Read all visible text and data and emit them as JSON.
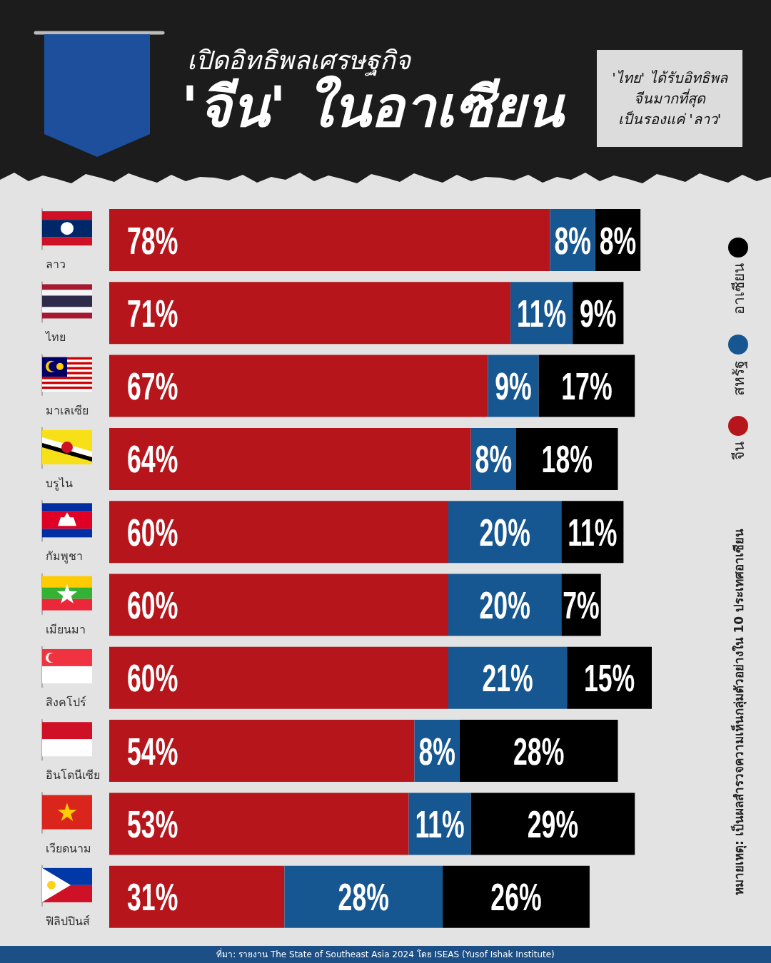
{
  "chart_data": {
    "type": "bar",
    "orientation": "horizontal",
    "stacked": true,
    "subtitle": "เปิดอิทธิพลเศรษฐกิจ",
    "title": "'จีน' ในอาเซียน",
    "categories": [
      "ลาว",
      "ไทย",
      "มาเลเซีย",
      "บรูไน",
      "กัมพูชา",
      "เมียนมา",
      "สิงคโปร์",
      "อินโดนีเซีย",
      "เวียดนาม",
      "ฟิลิปปินส์"
    ],
    "series": [
      {
        "name": "จีน",
        "color": "#b5151b",
        "values": [
          78,
          71,
          67,
          64,
          60,
          60,
          60,
          54,
          53,
          31
        ],
        "value_labels": [
          "78%",
          "71%",
          "67%",
          "64%",
          "60%",
          "60%",
          "60%",
          "54%",
          "53%",
          "31%"
        ]
      },
      {
        "name": "สหรัฐ",
        "color": "#175791",
        "values": [
          8,
          11,
          9,
          8,
          20,
          20,
          21,
          8,
          11,
          28
        ],
        "value_labels": [
          "8%",
          "11%",
          "9%",
          "8%",
          "20%",
          "20%",
          "21%",
          "8%",
          "11%",
          "28%"
        ]
      },
      {
        "name": "อาเซียน",
        "color": "#000000",
        "values": [
          8,
          9,
          17,
          18,
          11,
          7,
          15,
          28,
          29,
          26
        ],
        "value_labels": [
          "8%",
          "9%",
          "17%",
          "18%",
          "11%",
          "7%",
          "15%",
          "28%",
          "29%",
          "26%"
        ]
      }
    ],
    "legend": "right",
    "tick_labels": "y",
    "annotations": [
      "'ไทย' ได้รับอิทธิพล\nจีนมากที่สุด\nเป็นรองแค่ 'ลาว'",
      "หมายเหตุ: เป็นผลสำรวจความเห็นกลุ่มตัวอย่างใน 10 ประเทศอาเซียน",
      "ที่มา: รายงาน The State of Southeast Asia 2024 โดย ISEAS (Yusof Ishak Institute)"
    ]
  }
}
